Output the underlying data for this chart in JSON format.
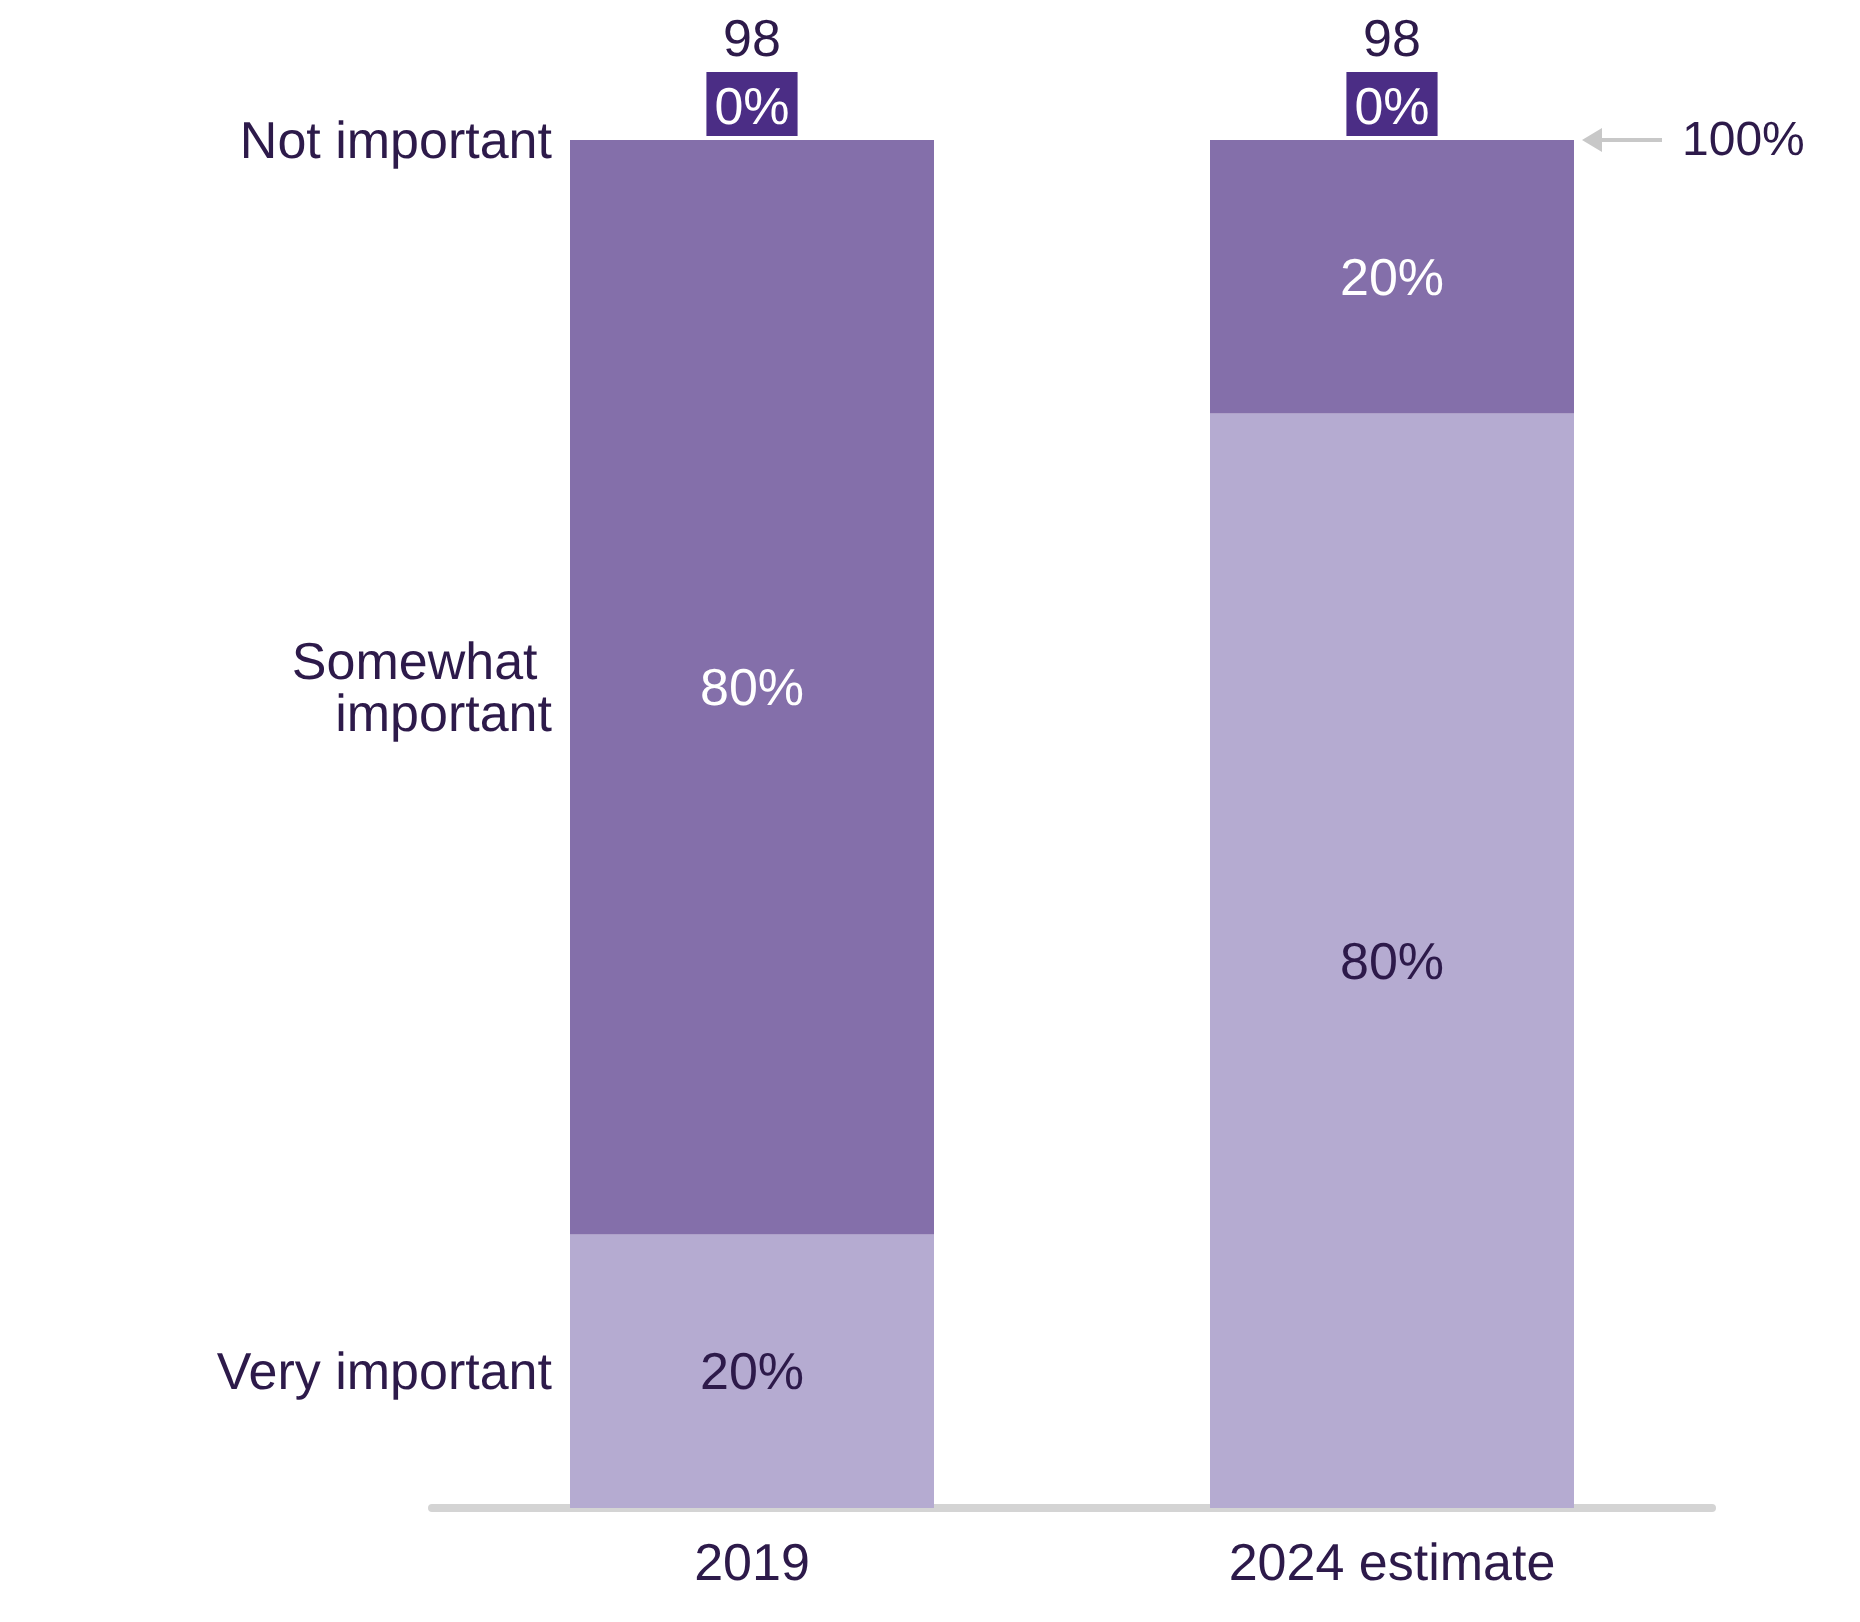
{
  "chart_data": {
    "type": "bar",
    "stacked": true,
    "categories": [
      "2019",
      "2024 estimate"
    ],
    "series": [
      {
        "name": "Very important",
        "color": "#b5abd1",
        "values": [
          20,
          80
        ],
        "value_labels": [
          "20%",
          "80%"
        ]
      },
      {
        "name": "Somewhat important",
        "color": "#846faa",
        "values": [
          80,
          20
        ],
        "value_labels": [
          "80%",
          "20%"
        ]
      },
      {
        "name": "Not important",
        "values": [
          0,
          0
        ],
        "value_labels": [
          "0%",
          "0%"
        ]
      }
    ],
    "ylim": [
      0,
      100
    ],
    "totals": [
      "98",
      "98"
    ],
    "legend": "left",
    "tick_labels": "x",
    "annotations": [
      "100%"
    ]
  }
}
